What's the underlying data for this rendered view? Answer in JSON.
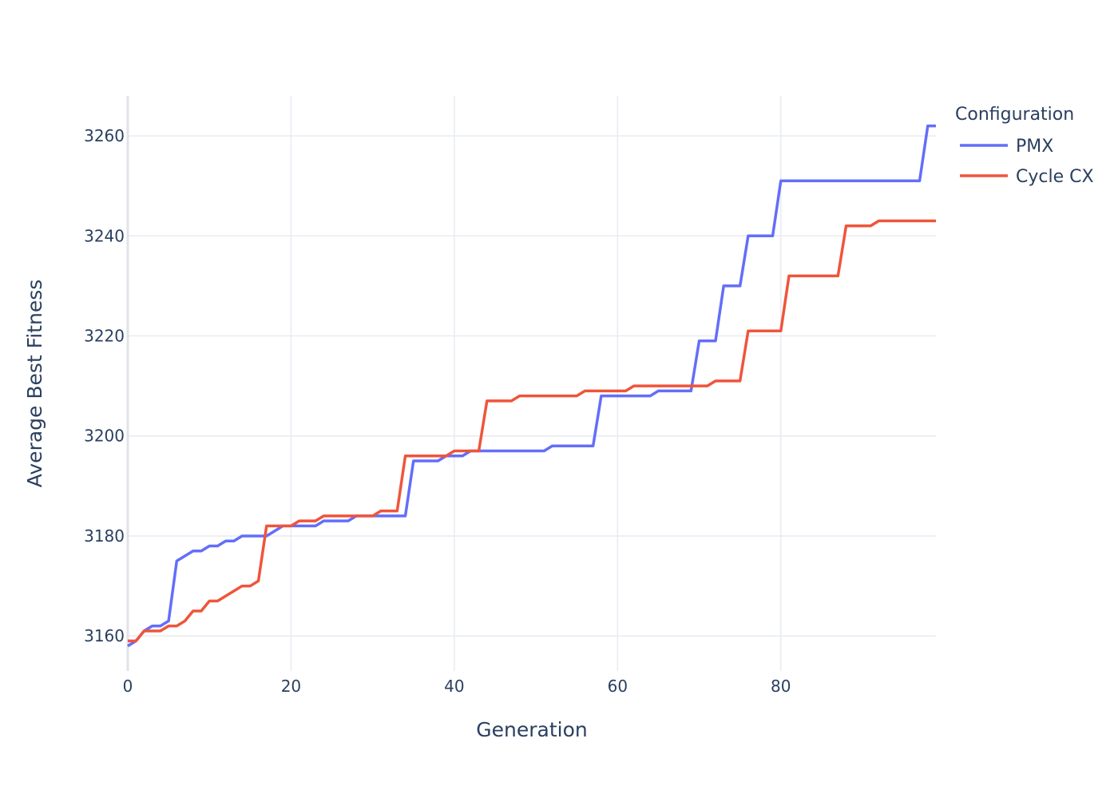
{
  "chart_data": {
    "type": "line",
    "xlabel": "Generation",
    "ylabel": "Average Best Fitness",
    "xlim": [
      0,
      99
    ],
    "ylim": [
      3153,
      3268
    ],
    "xticks": [
      0,
      20,
      40,
      60,
      80
    ],
    "yticks": [
      3160,
      3180,
      3200,
      3220,
      3240,
      3260
    ],
    "grid": true,
    "legend": {
      "title": "Configuration",
      "placement": "top-right-outside"
    },
    "series": [
      {
        "name": "PMX",
        "color": "#636efa",
        "x": [
          0,
          1,
          2,
          3,
          4,
          5,
          6,
          7,
          8,
          9,
          10,
          11,
          12,
          13,
          14,
          15,
          16,
          17,
          18,
          19,
          20,
          21,
          22,
          23,
          24,
          25,
          26,
          27,
          28,
          29,
          30,
          31,
          32,
          33,
          34,
          35,
          36,
          37,
          38,
          39,
          40,
          41,
          42,
          43,
          44,
          45,
          46,
          47,
          48,
          49,
          50,
          51,
          52,
          53,
          54,
          55,
          56,
          57,
          58,
          59,
          60,
          61,
          62,
          63,
          64,
          65,
          66,
          67,
          68,
          69,
          70,
          71,
          72,
          73,
          74,
          75,
          76,
          77,
          78,
          79,
          80,
          81,
          82,
          83,
          84,
          85,
          86,
          87,
          88,
          89,
          90,
          91,
          92,
          93,
          94,
          95,
          96,
          97,
          98,
          99
        ],
        "y": [
          3158,
          3159,
          3161,
          3162,
          3162,
          3163,
          3175,
          3176,
          3177,
          3177,
          3178,
          3178,
          3179,
          3179,
          3180,
          3180,
          3180,
          3180,
          3181,
          3182,
          3182,
          3182,
          3182,
          3182,
          3183,
          3183,
          3183,
          3183,
          3184,
          3184,
          3184,
          3184,
          3184,
          3184,
          3184,
          3195,
          3195,
          3195,
          3195,
          3196,
          3196,
          3196,
          3197,
          3197,
          3197,
          3197,
          3197,
          3197,
          3197,
          3197,
          3197,
          3197,
          3198,
          3198,
          3198,
          3198,
          3198,
          3198,
          3208,
          3208,
          3208,
          3208,
          3208,
          3208,
          3208,
          3209,
          3209,
          3209,
          3209,
          3209,
          3219,
          3219,
          3219,
          3230,
          3230,
          3230,
          3240,
          3240,
          3240,
          3240,
          3251,
          3251,
          3251,
          3251,
          3251,
          3251,
          3251,
          3251,
          3251,
          3251,
          3251,
          3251,
          3251,
          3251,
          3251,
          3251,
          3251,
          3251,
          3262,
          3262
        ]
      },
      {
        "name": "Cycle CX",
        "color": "#ef553b",
        "x": [
          0,
          1,
          2,
          3,
          4,
          5,
          6,
          7,
          8,
          9,
          10,
          11,
          12,
          13,
          14,
          15,
          16,
          17,
          18,
          19,
          20,
          21,
          22,
          23,
          24,
          25,
          26,
          27,
          28,
          29,
          30,
          31,
          32,
          33,
          34,
          35,
          36,
          37,
          38,
          39,
          40,
          41,
          42,
          43,
          44,
          45,
          46,
          47,
          48,
          49,
          50,
          51,
          52,
          53,
          54,
          55,
          56,
          57,
          58,
          59,
          60,
          61,
          62,
          63,
          64,
          65,
          66,
          67,
          68,
          69,
          70,
          71,
          72,
          73,
          74,
          75,
          76,
          77,
          78,
          79,
          80,
          81,
          82,
          83,
          84,
          85,
          86,
          87,
          88,
          89,
          90,
          91,
          92,
          93,
          94,
          95,
          96,
          97,
          98,
          99
        ],
        "y": [
          3159,
          3159,
          3161,
          3161,
          3161,
          3162,
          3162,
          3163,
          3165,
          3165,
          3167,
          3167,
          3168,
          3169,
          3170,
          3170,
          3171,
          3182,
          3182,
          3182,
          3182,
          3183,
          3183,
          3183,
          3184,
          3184,
          3184,
          3184,
          3184,
          3184,
          3184,
          3185,
          3185,
          3185,
          3196,
          3196,
          3196,
          3196,
          3196,
          3196,
          3197,
          3197,
          3197,
          3197,
          3207,
          3207,
          3207,
          3207,
          3208,
          3208,
          3208,
          3208,
          3208,
          3208,
          3208,
          3208,
          3209,
          3209,
          3209,
          3209,
          3209,
          3209,
          3210,
          3210,
          3210,
          3210,
          3210,
          3210,
          3210,
          3210,
          3210,
          3210,
          3211,
          3211,
          3211,
          3211,
          3221,
          3221,
          3221,
          3221,
          3221,
          3232,
          3232,
          3232,
          3232,
          3232,
          3232,
          3232,
          3242,
          3242,
          3242,
          3242,
          3243,
          3243,
          3243,
          3243,
          3243,
          3243,
          3243,
          3243
        ]
      }
    ]
  }
}
